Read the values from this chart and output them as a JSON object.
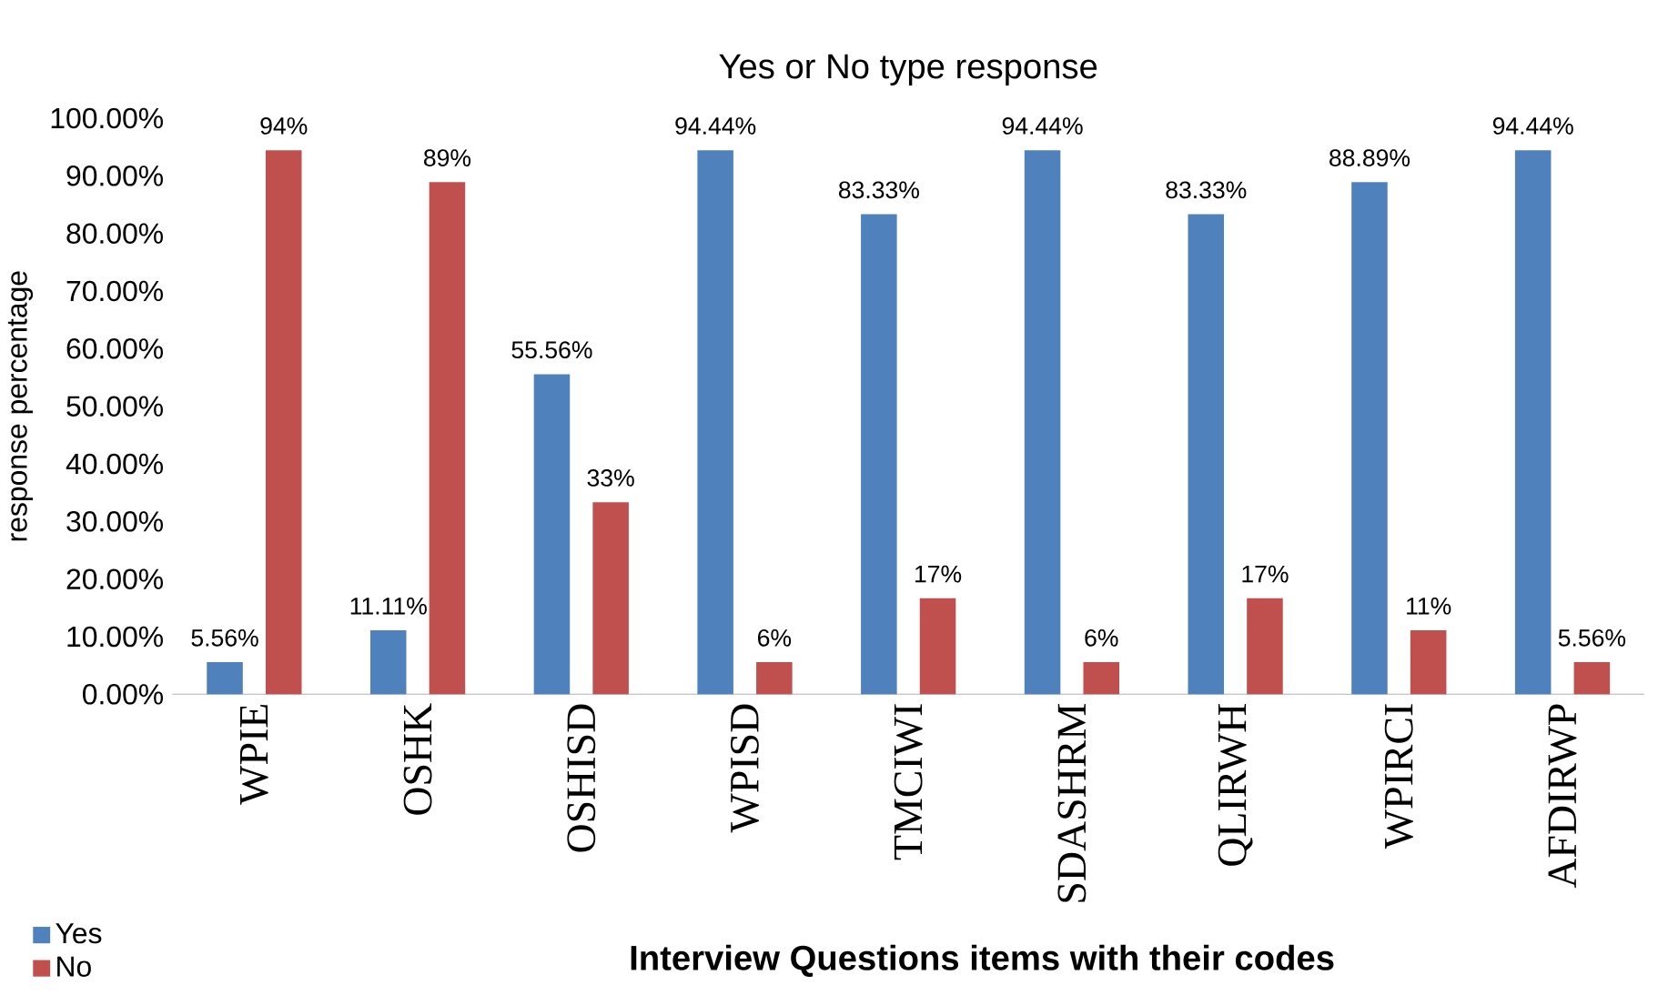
{
  "chart_data": {
    "type": "bar",
    "title": "Yes or No type response",
    "xlabel": "Interview Questions items with their codes",
    "ylabel": "response percentage",
    "categories": [
      "WPIE",
      "OSHK",
      "OSHISD",
      "WPISD",
      "TMCIWI",
      "SDASHRM",
      "QLIRWH",
      "WPIRCI",
      "AFDIRWP"
    ],
    "series": [
      {
        "name": "Yes",
        "color": "#4f81bd",
        "values": [
          5.56,
          11.11,
          55.56,
          94.44,
          83.33,
          94.44,
          83.33,
          88.89,
          94.44
        ],
        "value_labels": [
          "5.56%",
          "11.11%",
          "55.56%",
          "94.44%",
          "83.33%",
          "94.44%",
          "83.33%",
          "88.89%",
          "94.44%"
        ]
      },
      {
        "name": "No",
        "color": "#c0504d",
        "values": [
          94.44,
          88.89,
          33.33,
          5.56,
          16.67,
          5.56,
          16.67,
          11.11,
          5.56
        ],
        "value_labels": [
          "94%",
          "89%",
          "33%",
          "6%",
          "17%",
          "6%",
          "17%",
          "11%",
          "5.56%"
        ]
      }
    ],
    "ylim": [
      0,
      100
    ],
    "yticks": [
      {
        "value": 0,
        "label": "0.00%"
      },
      {
        "value": 10,
        "label": "10.00%"
      },
      {
        "value": 20,
        "label": "20.00%"
      },
      {
        "value": 30,
        "label": "30.00%"
      },
      {
        "value": 40,
        "label": "40.00%"
      },
      {
        "value": 50,
        "label": "50.00%"
      },
      {
        "value": 60,
        "label": "60.00%"
      },
      {
        "value": 70,
        "label": "70.00%"
      },
      {
        "value": 80,
        "label": "80.00%"
      },
      {
        "value": 90,
        "label": "90.00%"
      },
      {
        "value": 100,
        "label": "100.00%"
      }
    ],
    "legend": "bottom left"
  }
}
